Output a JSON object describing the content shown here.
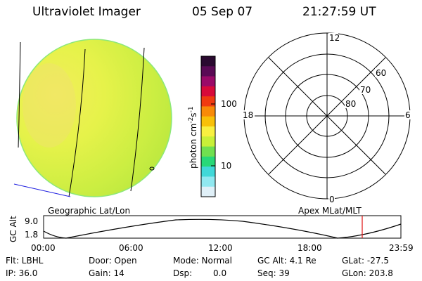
{
  "header": {
    "title": "Ultraviolet Imager",
    "date": "05 Sep 07",
    "time": "21:27:59 UT"
  },
  "colorbar": {
    "unit": "photon cm",
    "unit_sup1": "-2",
    "unit_s": "s",
    "unit_sup2": "-1",
    "tick_labels": [
      "100",
      "10"
    ],
    "colors": [
      "#2a0a30",
      "#5a0a55",
      "#9a0a68",
      "#d80a3a",
      "#f03a10",
      "#f88a08",
      "#f8c008",
      "#f8f040",
      "#c8f038",
      "#70e050",
      "#28d878",
      "#40d8d8",
      "#90e8f0",
      "#e0f0f8"
    ]
  },
  "polar_dial": {
    "hour_labels": [
      "12",
      "18",
      "6",
      "0"
    ],
    "lat_labels": [
      "60",
      "70",
      "80"
    ]
  },
  "frame_labels": {
    "left": "Geographic Lat/Lon",
    "right": "Apex MLat/MLT"
  },
  "altitude_plot": {
    "ylabel": "GC Alt",
    "y_ticks": [
      "9.0",
      "1.8"
    ],
    "x_ticks": [
      "00:00",
      "06:00",
      "12:00",
      "18:00",
      "23:59"
    ],
    "marker_time": "21:27:59"
  },
  "status": {
    "flt": "Flt: LBHL",
    "ip": "IP: 36.0",
    "door": "Door: Open",
    "gain": "Gain: 14",
    "mode": "Mode: Normal",
    "dsp": "Dsp:",
    "dsp_val": "0.0",
    "gcalt": "GC Alt: 4.1 Re",
    "seq": "Seq: 39",
    "glat": "GLat: -27.5",
    "glon": "GLon: 203.8"
  }
}
